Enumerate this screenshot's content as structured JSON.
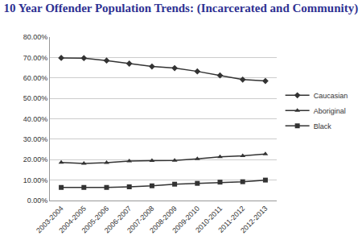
{
  "chart_data": {
    "type": "line",
    "title": "10 Year Offender Population Trends: (Incarcerated and Community)",
    "categories": [
      "2003-2004",
      "2004-2005",
      "2005-2006",
      "2006-2007",
      "2007-2008",
      "2008-2009",
      "2009-2010",
      "2010-2011",
      "2011-2012",
      "2012-2013"
    ],
    "series": [
      {
        "name": "Caucasian",
        "color": "#333333",
        "marker": "diamond",
        "line_style": "solid",
        "values": [
          69.8,
          69.7,
          68.5,
          67.0,
          65.6,
          64.8,
          63.2,
          61.2,
          59.2,
          58.5
        ]
      },
      {
        "name": "Aboriginal",
        "color": "#333333",
        "marker": "triangle-up",
        "line_style": "solid",
        "values": [
          18.6,
          18.1,
          18.5,
          19.3,
          19.5,
          19.6,
          20.4,
          21.4,
          21.9,
          22.8
        ]
      },
      {
        "name": "Black",
        "color": "#333333",
        "marker": "square",
        "line_style": "solid",
        "values": [
          6.4,
          6.4,
          6.4,
          6.7,
          7.2,
          8.0,
          8.4,
          9.0,
          9.2,
          10.0
        ]
      }
    ],
    "ylim": [
      0,
      80
    ],
    "yticks": [
      {
        "value": 0,
        "label": "0.00%"
      },
      {
        "value": 10,
        "label": "10.00%"
      },
      {
        "value": 20,
        "label": "20.00%"
      },
      {
        "value": 30,
        "label": "30.00%"
      },
      {
        "value": 40,
        "label": "40.00%"
      },
      {
        "value": 50,
        "label": "50.00%"
      },
      {
        "value": 60,
        "label": "60.00%"
      },
      {
        "value": 70,
        "label": "70.00%"
      },
      {
        "value": 80,
        "label": "80.00%"
      }
    ],
    "grid": true,
    "legend": "right"
  }
}
